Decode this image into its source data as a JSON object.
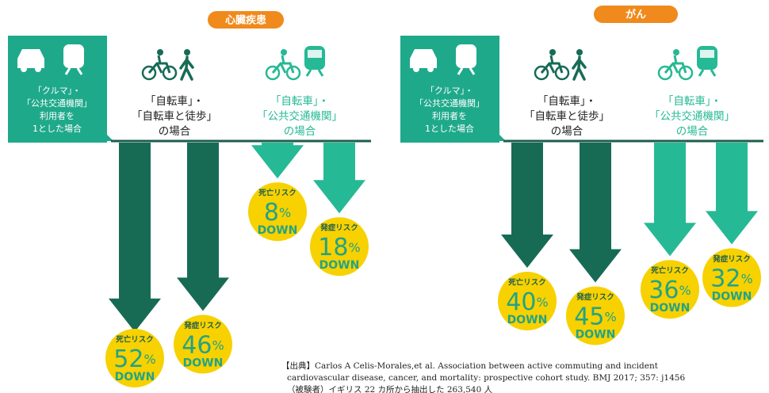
{
  "panels": [
    {
      "title": "心臓疾患",
      "base": {
        "lines": [
          "「クルマ」・",
          "「公共交通機関」",
          "利用者を",
          "1とした場合"
        ]
      },
      "groups": [
        {
          "lines": [
            "「自転車」・",
            "「自転車と徒歩」",
            "の場合"
          ]
        },
        {
          "lines": [
            "「自転車」・",
            "「公共交通機関」",
            "の場合"
          ]
        }
      ],
      "arrows": [
        {
          "label": "死亡リスク",
          "value": 52,
          "unit": "%",
          "down": "DOWN"
        },
        {
          "label": "発症リスク",
          "value": 46,
          "unit": "%",
          "down": "DOWN"
        },
        {
          "label": "死亡リスク",
          "value": 8,
          "unit": "%",
          "down": "DOWN"
        },
        {
          "label": "発症リスク",
          "value": 18,
          "unit": "%",
          "down": "DOWN"
        }
      ]
    },
    {
      "title": "がん",
      "base": {
        "lines": [
          "「クルマ」・",
          "「公共交通機関」",
          "利用者を",
          "1とした場合"
        ]
      },
      "groups": [
        {
          "lines": [
            "「自転車」・",
            "「自転車と徒歩」",
            "の場合"
          ]
        },
        {
          "lines": [
            "「自転車」・",
            "「公共交通機関」",
            "の場合"
          ]
        }
      ],
      "arrows": [
        {
          "label": "死亡リスク",
          "value": 40,
          "unit": "%",
          "down": "DOWN"
        },
        {
          "label": "発症リスク",
          "value": 45,
          "unit": "%",
          "down": "DOWN"
        },
        {
          "label": "死亡リスク",
          "value": 36,
          "unit": "%",
          "down": "DOWN"
        },
        {
          "label": "発症リスク",
          "value": 32,
          "unit": "%",
          "down": "DOWN"
        }
      ]
    }
  ],
  "citation": {
    "lines": [
      "【出典】Carlos A Celis-Morales,et al. Association between active commuting and incident",
      "cardiovascular disease, cancer, and mortality: prospective cohort study. BMJ 2017; 357: j1456",
      "（被験者）イギリス 22 カ所から抽出した 263,540 人"
    ]
  }
}
